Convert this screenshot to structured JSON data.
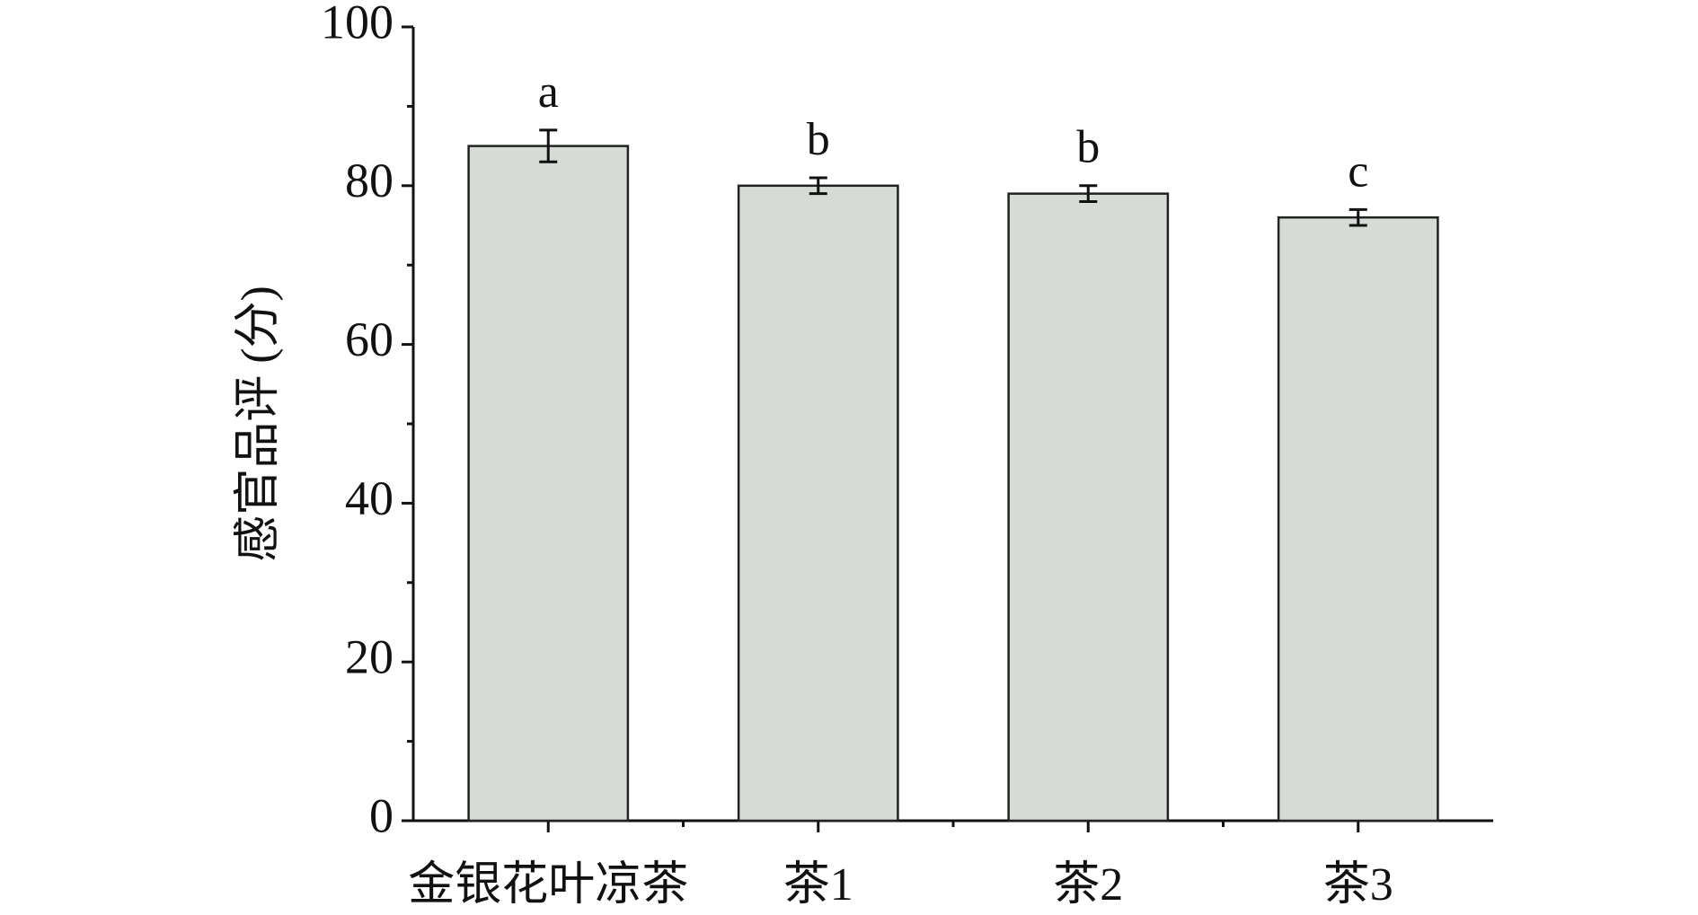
{
  "chart_data": {
    "type": "bar",
    "y_label": "感官品评 (分)",
    "categories": [
      "金银花叶凉茶",
      "茶1",
      "茶2",
      "茶3"
    ],
    "values": [
      85,
      80,
      79,
      76
    ],
    "errors": [
      2,
      1,
      1,
      1
    ],
    "annotations": [
      "a",
      "b",
      "b",
      "c"
    ],
    "color": "#d6dbd6",
    "ylim": [
      0,
      100
    ],
    "yticks": [
      0,
      20,
      40,
      60,
      80,
      100
    ],
    "yminor_ticks": [
      10,
      30,
      50,
      70,
      90
    ],
    "grid": false
  }
}
